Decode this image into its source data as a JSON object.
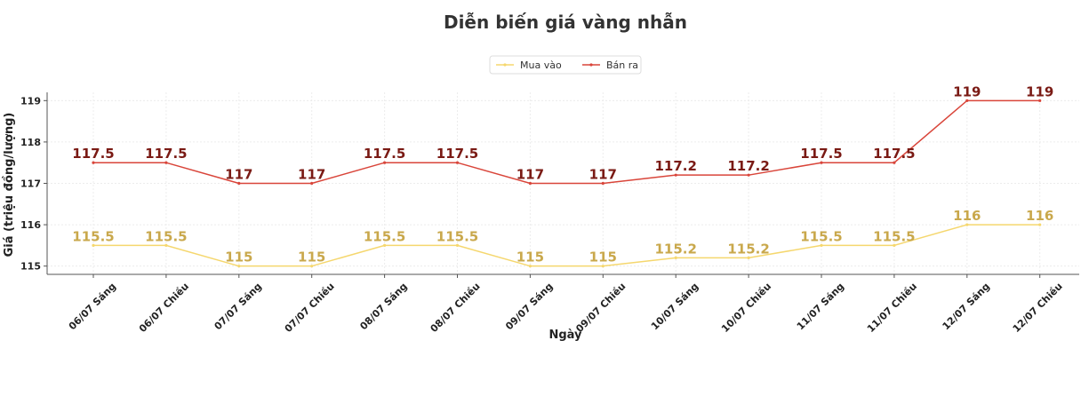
{
  "chart_data": {
    "type": "line",
    "title": "Diễn biến giá vàng nhẫn",
    "xlabel": "Ngày",
    "ylabel": "Giá (triệu đồng/lượng)",
    "ylim": [
      114.8,
      119.2
    ],
    "yticks": [
      115,
      116,
      117,
      118,
      119
    ],
    "grid": true,
    "legend_position": "top-center",
    "categories": [
      "06/07 Sáng",
      "06/07 Chiều",
      "07/07 Sáng",
      "07/07 Chiều",
      "08/07 Sáng",
      "08/07 Chiều",
      "09/07 Sáng",
      "09/07 Chiều",
      "10/07 Sáng",
      "10/07 Chiều",
      "11/07 Sáng",
      "11/07 Chiều",
      "12/07 Sáng",
      "12/07 Chiều"
    ],
    "series": [
      {
        "name": "Mua vào",
        "color": "#f5d76e",
        "label_color": "#c9a84c",
        "values": [
          115.5,
          115.5,
          115,
          115,
          115.5,
          115.5,
          115,
          115,
          115.2,
          115.2,
          115.5,
          115.5,
          116,
          116
        ],
        "labels": [
          "115.5",
          "115.5",
          "115",
          "115",
          "115.5",
          "115.5",
          "115",
          "115",
          "115.2",
          "115.2",
          "115.5",
          "115.5",
          "116",
          "116"
        ]
      },
      {
        "name": "Bán ra",
        "color": "#d9453a",
        "label_color": "#7a1a14",
        "values": [
          117.5,
          117.5,
          117,
          117,
          117.5,
          117.5,
          117,
          117,
          117.2,
          117.2,
          117.5,
          117.5,
          119,
          119
        ],
        "labels": [
          "117.5",
          "117.5",
          "117",
          "117",
          "117.5",
          "117.5",
          "117",
          "117",
          "117.2",
          "117.2",
          "117.5",
          "117.5",
          "119",
          "119"
        ]
      }
    ]
  }
}
